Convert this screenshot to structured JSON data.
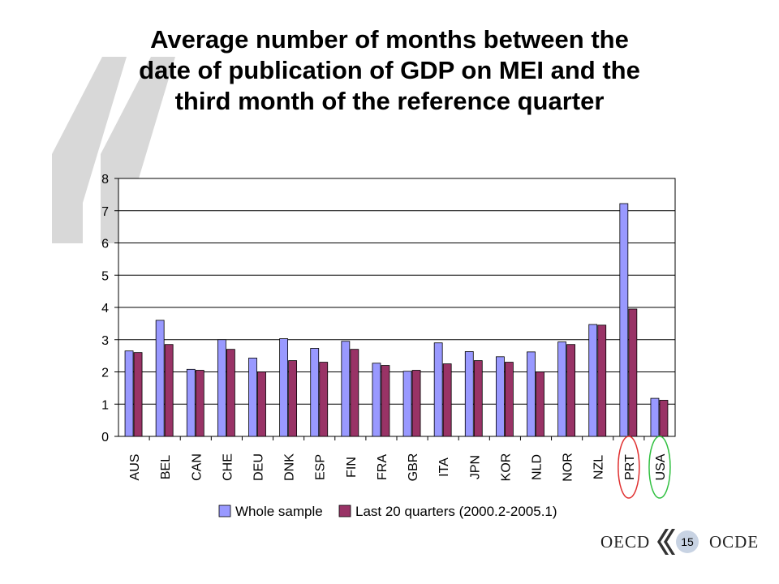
{
  "slide": {
    "title_lines": [
      "Average number of months between the",
      "date of publication of GDP on MEI and the",
      "third month of the reference quarter"
    ],
    "page_number": "15",
    "footer_left": "OECD",
    "footer_right": "OCDE"
  },
  "chart_data": {
    "type": "bar",
    "title": "",
    "xlabel": "",
    "ylabel": "",
    "ylim": [
      0,
      8
    ],
    "yticks": [
      0,
      1,
      2,
      3,
      4,
      5,
      6,
      7,
      8
    ],
    "grid": true,
    "legend_position": "bottom",
    "categories": [
      "AUS",
      "BEL",
      "CAN",
      "CHE",
      "DEU",
      "DNK",
      "ESP",
      "FIN",
      "FRA",
      "GBR",
      "ITA",
      "JPN",
      "KOR",
      "NLD",
      "NOR",
      "NZL",
      "PRT",
      "USA"
    ],
    "series": [
      {
        "name": "Whole sample",
        "color": "#9999ff",
        "values": [
          2.65,
          3.6,
          2.08,
          3.0,
          2.43,
          3.03,
          2.73,
          2.95,
          2.27,
          2.02,
          2.9,
          2.63,
          2.47,
          2.62,
          2.93,
          3.47,
          7.22,
          1.18
        ]
      },
      {
        "name": "Last 20 quarters (2000.2-2005.1)",
        "color": "#993366",
        "values": [
          2.6,
          2.85,
          2.05,
          2.7,
          2.0,
          2.35,
          2.3,
          2.7,
          2.2,
          2.05,
          2.25,
          2.35,
          2.3,
          2.0,
          2.85,
          3.45,
          3.95,
          1.12
        ]
      }
    ],
    "highlights": [
      {
        "category": "PRT",
        "color": "#e03030"
      },
      {
        "category": "USA",
        "color": "#30c040"
      }
    ]
  }
}
